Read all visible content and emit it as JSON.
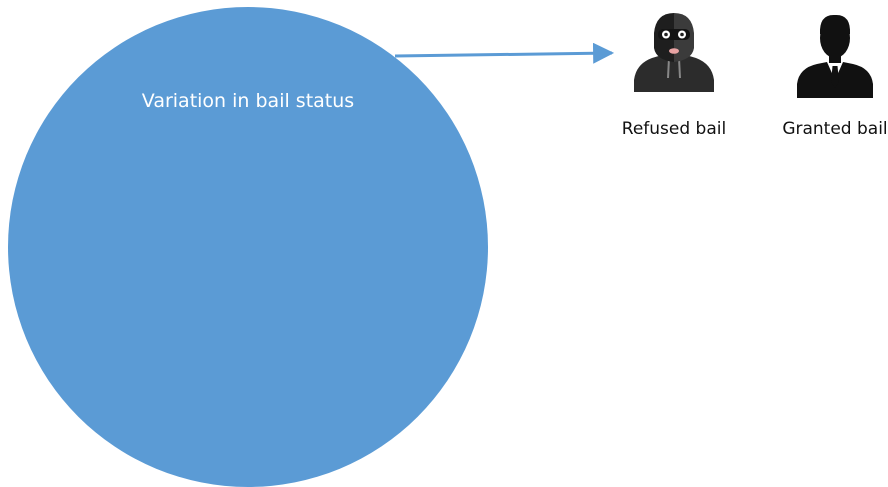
{
  "diagram": {
    "circle_label": "Variation in bail status",
    "outcomes": [
      {
        "label": "Refused bail",
        "icon": "masked-burglar-icon"
      },
      {
        "label": "Granted bail",
        "icon": "businessman-silhouette-icon"
      }
    ]
  },
  "colors": {
    "circle_fill": "#5b9bd5",
    "arrow": "#5b9bd5",
    "circle_text": "#ffffff",
    "icon_dark": "#1c1c1c",
    "mask": "#3a3a3a"
  }
}
